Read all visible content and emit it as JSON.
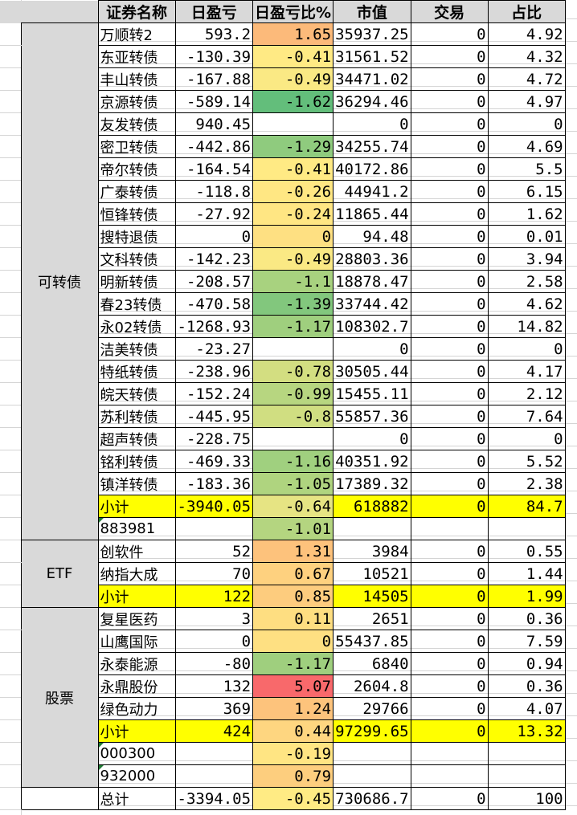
{
  "headers": [
    "证券名称",
    "日盈亏",
    "日盈亏比%",
    "市值",
    "交易",
    "占比"
  ],
  "scale_colors": {
    "min": "#63BE7B",
    "mid": "#FFEB84",
    "max": "#F8696B",
    "subtotal": "#FFFF00",
    "group_bg": "#D9D9D9"
  },
  "groups": [
    {
      "label": "可转债",
      "rows": [
        [
          "万顺转2",
          "593.2",
          "1.65",
          "35937.25",
          "0",
          "4.92"
        ],
        [
          "东亚转债",
          "-130.39",
          "-0.41",
          "31561.52",
          "0",
          "4.32"
        ],
        [
          "丰山转债",
          "-167.88",
          "-0.49",
          "34471.02",
          "0",
          "4.72"
        ],
        [
          "京源转债",
          "-589.14",
          "-1.62",
          "36294.46",
          "0",
          "4.97"
        ],
        [
          "友发转债",
          "940.45",
          "",
          "0",
          "0",
          "0"
        ],
        [
          "密卫转债",
          "-442.86",
          "-1.29",
          "34255.74",
          "0",
          "4.69"
        ],
        [
          "帝尔转债",
          "-164.54",
          "-0.41",
          "40172.86",
          "0",
          "5.5"
        ],
        [
          "广泰转债",
          "-118.8",
          "-0.26",
          "44941.2",
          "0",
          "6.15"
        ],
        [
          "恒锋转债",
          "-27.92",
          "-0.24",
          "11865.44",
          "0",
          "1.62"
        ],
        [
          "搜特退债",
          "0",
          "0",
          "94.48",
          "0",
          "0.01"
        ],
        [
          "文科转债",
          "-142.23",
          "-0.49",
          "28803.36",
          "0",
          "3.94"
        ],
        [
          "明新转债",
          "-208.57",
          "-1.1",
          "18878.47",
          "0",
          "2.58"
        ],
        [
          "春23转债",
          "-470.58",
          "-1.39",
          "33744.42",
          "0",
          "4.62"
        ],
        [
          "永02转债",
          "-1268.93",
          "-1.17",
          "108302.7",
          "0",
          "14.82"
        ],
        [
          "洁美转债",
          "-23.27",
          "",
          "0",
          "0",
          "0"
        ],
        [
          "特纸转债",
          "-238.96",
          "-0.78",
          "30505.44",
          "0",
          "4.17"
        ],
        [
          "皖天转债",
          "-152.24",
          "-0.99",
          "15455.11",
          "0",
          "2.12"
        ],
        [
          "苏利转债",
          "-445.95",
          "-0.8",
          "55857.36",
          "0",
          "7.64"
        ],
        [
          "超声转债",
          "-228.75",
          "",
          "0",
          "0",
          "0"
        ],
        [
          "铭利转债",
          "-469.33",
          "-1.16",
          "40351.92",
          "0",
          "5.52"
        ],
        [
          "镇洋转债",
          "-183.36",
          "-1.05",
          "17389.32",
          "0",
          "2.38"
        ],
        [
          "小计",
          "-3940.05",
          "-0.64",
          "618882",
          "0",
          "84.7",
          "sub"
        ],
        [
          "883981",
          "",
          "-1.01",
          "",
          "",
          "",
          "idx"
        ]
      ]
    },
    {
      "label": "ETF",
      "rows": [
        [
          "创软件",
          "52",
          "1.31",
          "3984",
          "0",
          "0.55"
        ],
        [
          "纳指大成",
          "70",
          "0.67",
          "10521",
          "0",
          "1.44"
        ],
        [
          "小计",
          "122",
          "0.85",
          "14505",
          "0",
          "1.99",
          "sub"
        ]
      ]
    },
    {
      "label": "股票",
      "rows": [
        [
          "复星医药",
          "3",
          "0.11",
          "2651",
          "0",
          "0.36"
        ],
        [
          "山鹰国际",
          "0",
          "0",
          "55437.85",
          "0",
          "7.59"
        ],
        [
          "永泰能源",
          "-80",
          "-1.17",
          "6840",
          "0",
          "0.94"
        ],
        [
          "永鼎股份",
          "132",
          "5.07",
          "2604.8",
          "0",
          "0.36"
        ],
        [
          "绿色动力",
          "369",
          "1.24",
          "29766",
          "0",
          "4.07"
        ],
        [
          "小计",
          "424",
          "0.44",
          "97299.65",
          "0",
          "13.32",
          "sub"
        ],
        [
          "000300",
          "",
          "-0.19",
          "",
          "",
          "",
          "idx"
        ],
        [
          "932000",
          "",
          "0.79",
          "",
          "",
          "",
          "idx"
        ]
      ]
    },
    {
      "label": "",
      "rows": [
        [
          "总计",
          "-3394.05",
          "-0.45",
          "730686.7",
          "0",
          "100"
        ]
      ]
    }
  ]
}
